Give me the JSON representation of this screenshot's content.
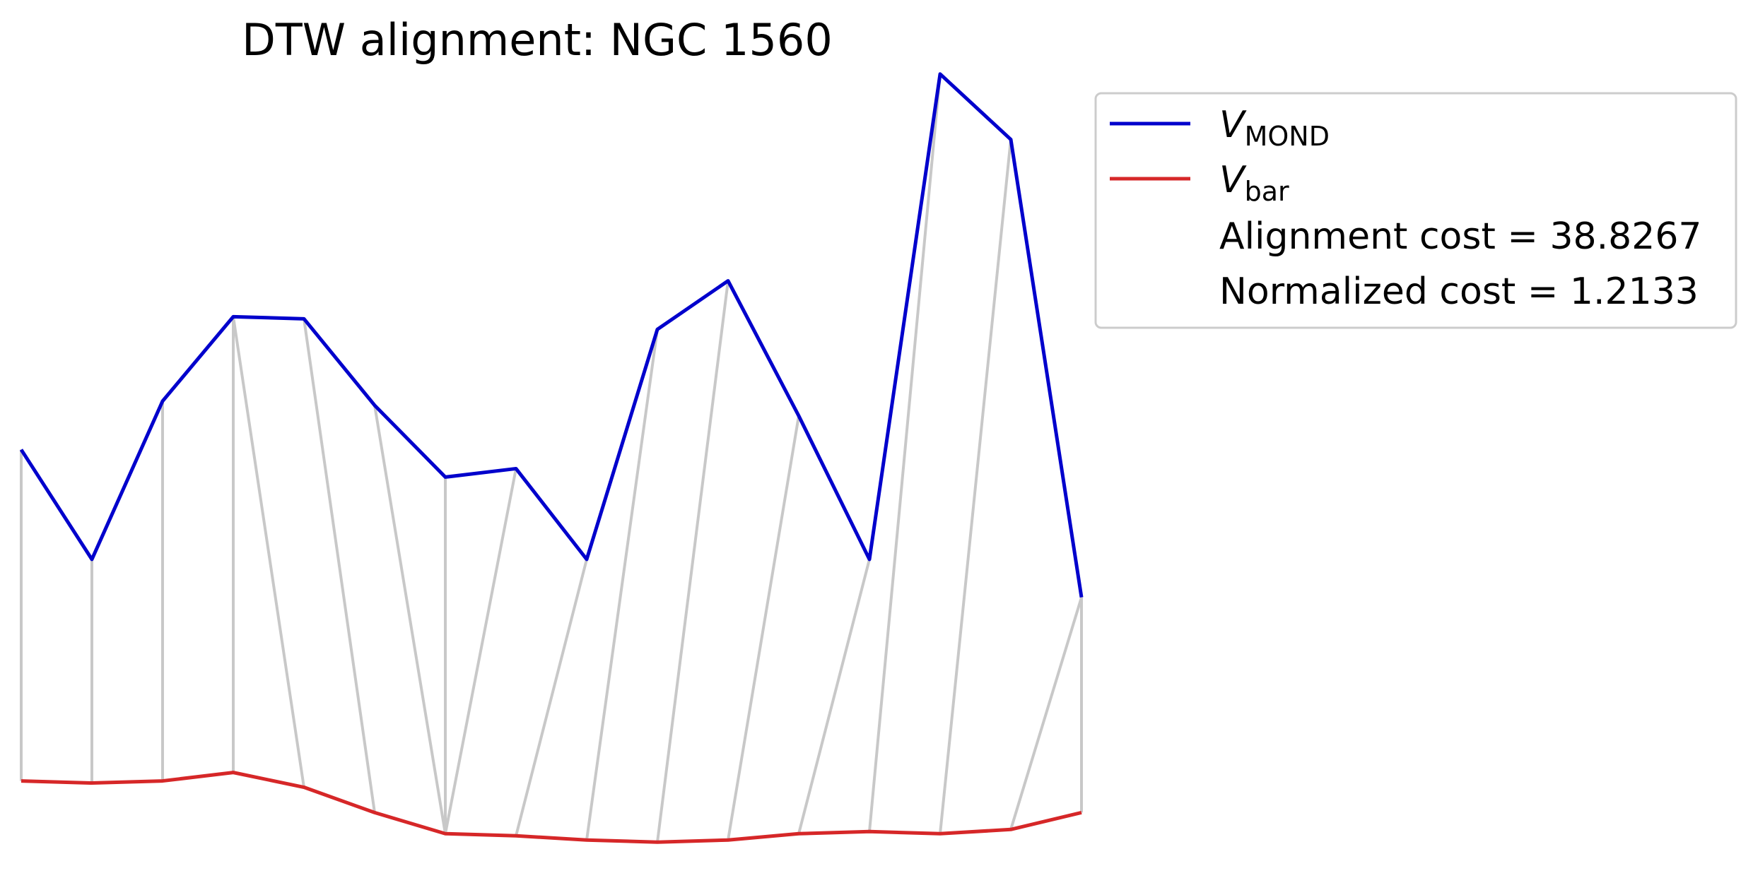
{
  "chart_data": {
    "type": "line",
    "title": "DTW alignment: NGC 1560",
    "xlabel": "",
    "ylabel": "",
    "axes_visible": false,
    "grid": false,
    "xlim": [
      -0.3,
      15.3
    ],
    "ylim": [
      -0.55,
      3.4
    ],
    "x": [
      0,
      1,
      2,
      3,
      4,
      5,
      6,
      7,
      8,
      9,
      10,
      11,
      12,
      13,
      14,
      15
    ],
    "series": [
      {
        "name": "MOND",
        "name_prefix": "V",
        "color": "#0000cc",
        "values": [
          1.47,
          0.95,
          1.7,
          2.1,
          2.09,
          1.68,
          1.34,
          1.38,
          0.95,
          2.04,
          2.27,
          1.63,
          0.95,
          3.25,
          2.94,
          0.77
        ]
      },
      {
        "name": "bar",
        "name_prefix": "V",
        "color": "#d62728",
        "values": [
          -0.1,
          -0.11,
          -0.1,
          -0.06,
          -0.13,
          -0.25,
          -0.35,
          -0.36,
          -0.38,
          -0.39,
          -0.38,
          -0.35,
          -0.34,
          -0.35,
          -0.33,
          -0.25
        ]
      }
    ],
    "alignment": {
      "color": "#c8c8c8",
      "pairs": [
        [
          0,
          0
        ],
        [
          1,
          1
        ],
        [
          2,
          2
        ],
        [
          3,
          3
        ],
        [
          3,
          4
        ],
        [
          4,
          5
        ],
        [
          5,
          6
        ],
        [
          6,
          6
        ],
        [
          7,
          6
        ],
        [
          8,
          7
        ],
        [
          9,
          8
        ],
        [
          10,
          9
        ],
        [
          11,
          10
        ],
        [
          12,
          11
        ],
        [
          13,
          12
        ],
        [
          14,
          13
        ],
        [
          15,
          14
        ],
        [
          15,
          15
        ]
      ]
    },
    "legend": {
      "placement": "outside-top-right",
      "annotations": [
        "Alignment cost = 38.8267",
        "Normalized cost = 1.2133"
      ]
    }
  }
}
